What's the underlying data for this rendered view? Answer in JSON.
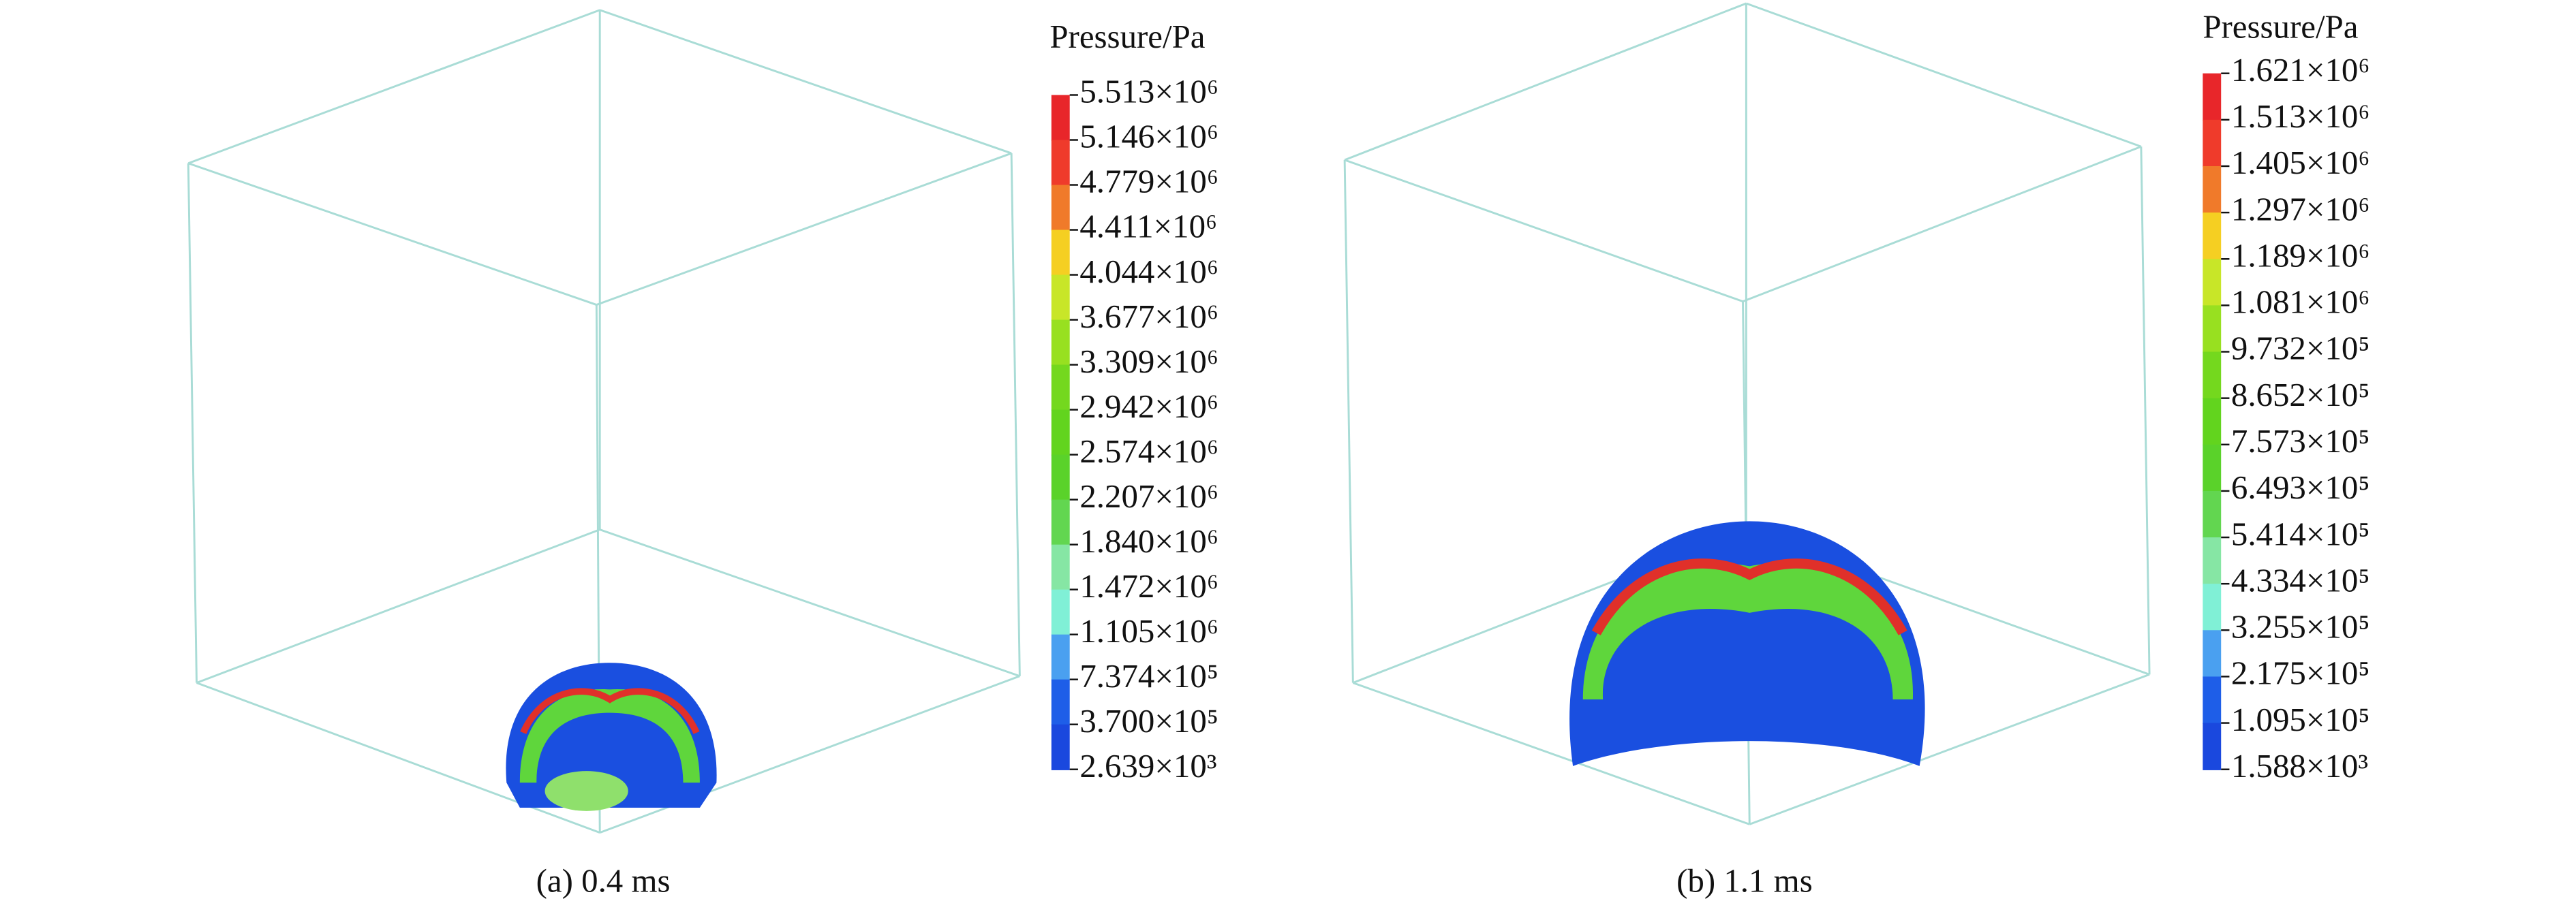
{
  "panels": [
    {
      "caption": "(a) 0.4 ms",
      "colorbar": {
        "title": "Pressure/Pa",
        "labels": [
          "5.513×10⁶",
          "5.146×10⁶",
          "4.779×10⁶",
          "4.411×10⁶",
          "4.044×10⁶",
          "3.677×10⁶",
          "3.309×10⁶",
          "2.942×10⁶",
          "2.574×10⁶",
          "2.207×10⁶",
          "1.840×10⁶",
          "1.472×10⁶",
          "1.105×10⁶",
          "7.374×10⁵",
          "3.700×10⁵",
          "2.639×10³"
        ],
        "colors": [
          "#e8262a",
          "#ef3b2b",
          "#f07a2a",
          "#f5cf22",
          "#c8e628",
          "#98e020",
          "#74d81e",
          "#62d41e",
          "#5ad22a",
          "#62d650",
          "#86e6a4",
          "#80f0d6",
          "#4aa0f0",
          "#1e5ee8",
          "#1a48de"
        ]
      }
    },
    {
      "caption": "(b) 1.1 ms",
      "colorbar": {
        "title": "Pressure/Pa",
        "labels": [
          "1.621×10⁶",
          "1.513×10⁶",
          "1.405×10⁶",
          "1.297×10⁶",
          "1.189×10⁶",
          "1.081×10⁶",
          "9.732×10⁵",
          "8.652×10⁵",
          "7.573×10⁵",
          "6.493×10⁵",
          "5.414×10⁵",
          "4.334×10⁵",
          "3.255×10⁵",
          "2.175×10⁵",
          "1.095×10⁵",
          "1.588×10³"
        ],
        "colors": [
          "#e8262a",
          "#ef3b2b",
          "#f07a2a",
          "#f5cf22",
          "#c8e628",
          "#98e020",
          "#74d81e",
          "#62d41e",
          "#5ad22a",
          "#62d650",
          "#86e6a4",
          "#80f0d6",
          "#4aa0f0",
          "#1e5ee8",
          "#1a48de"
        ]
      }
    }
  ]
}
